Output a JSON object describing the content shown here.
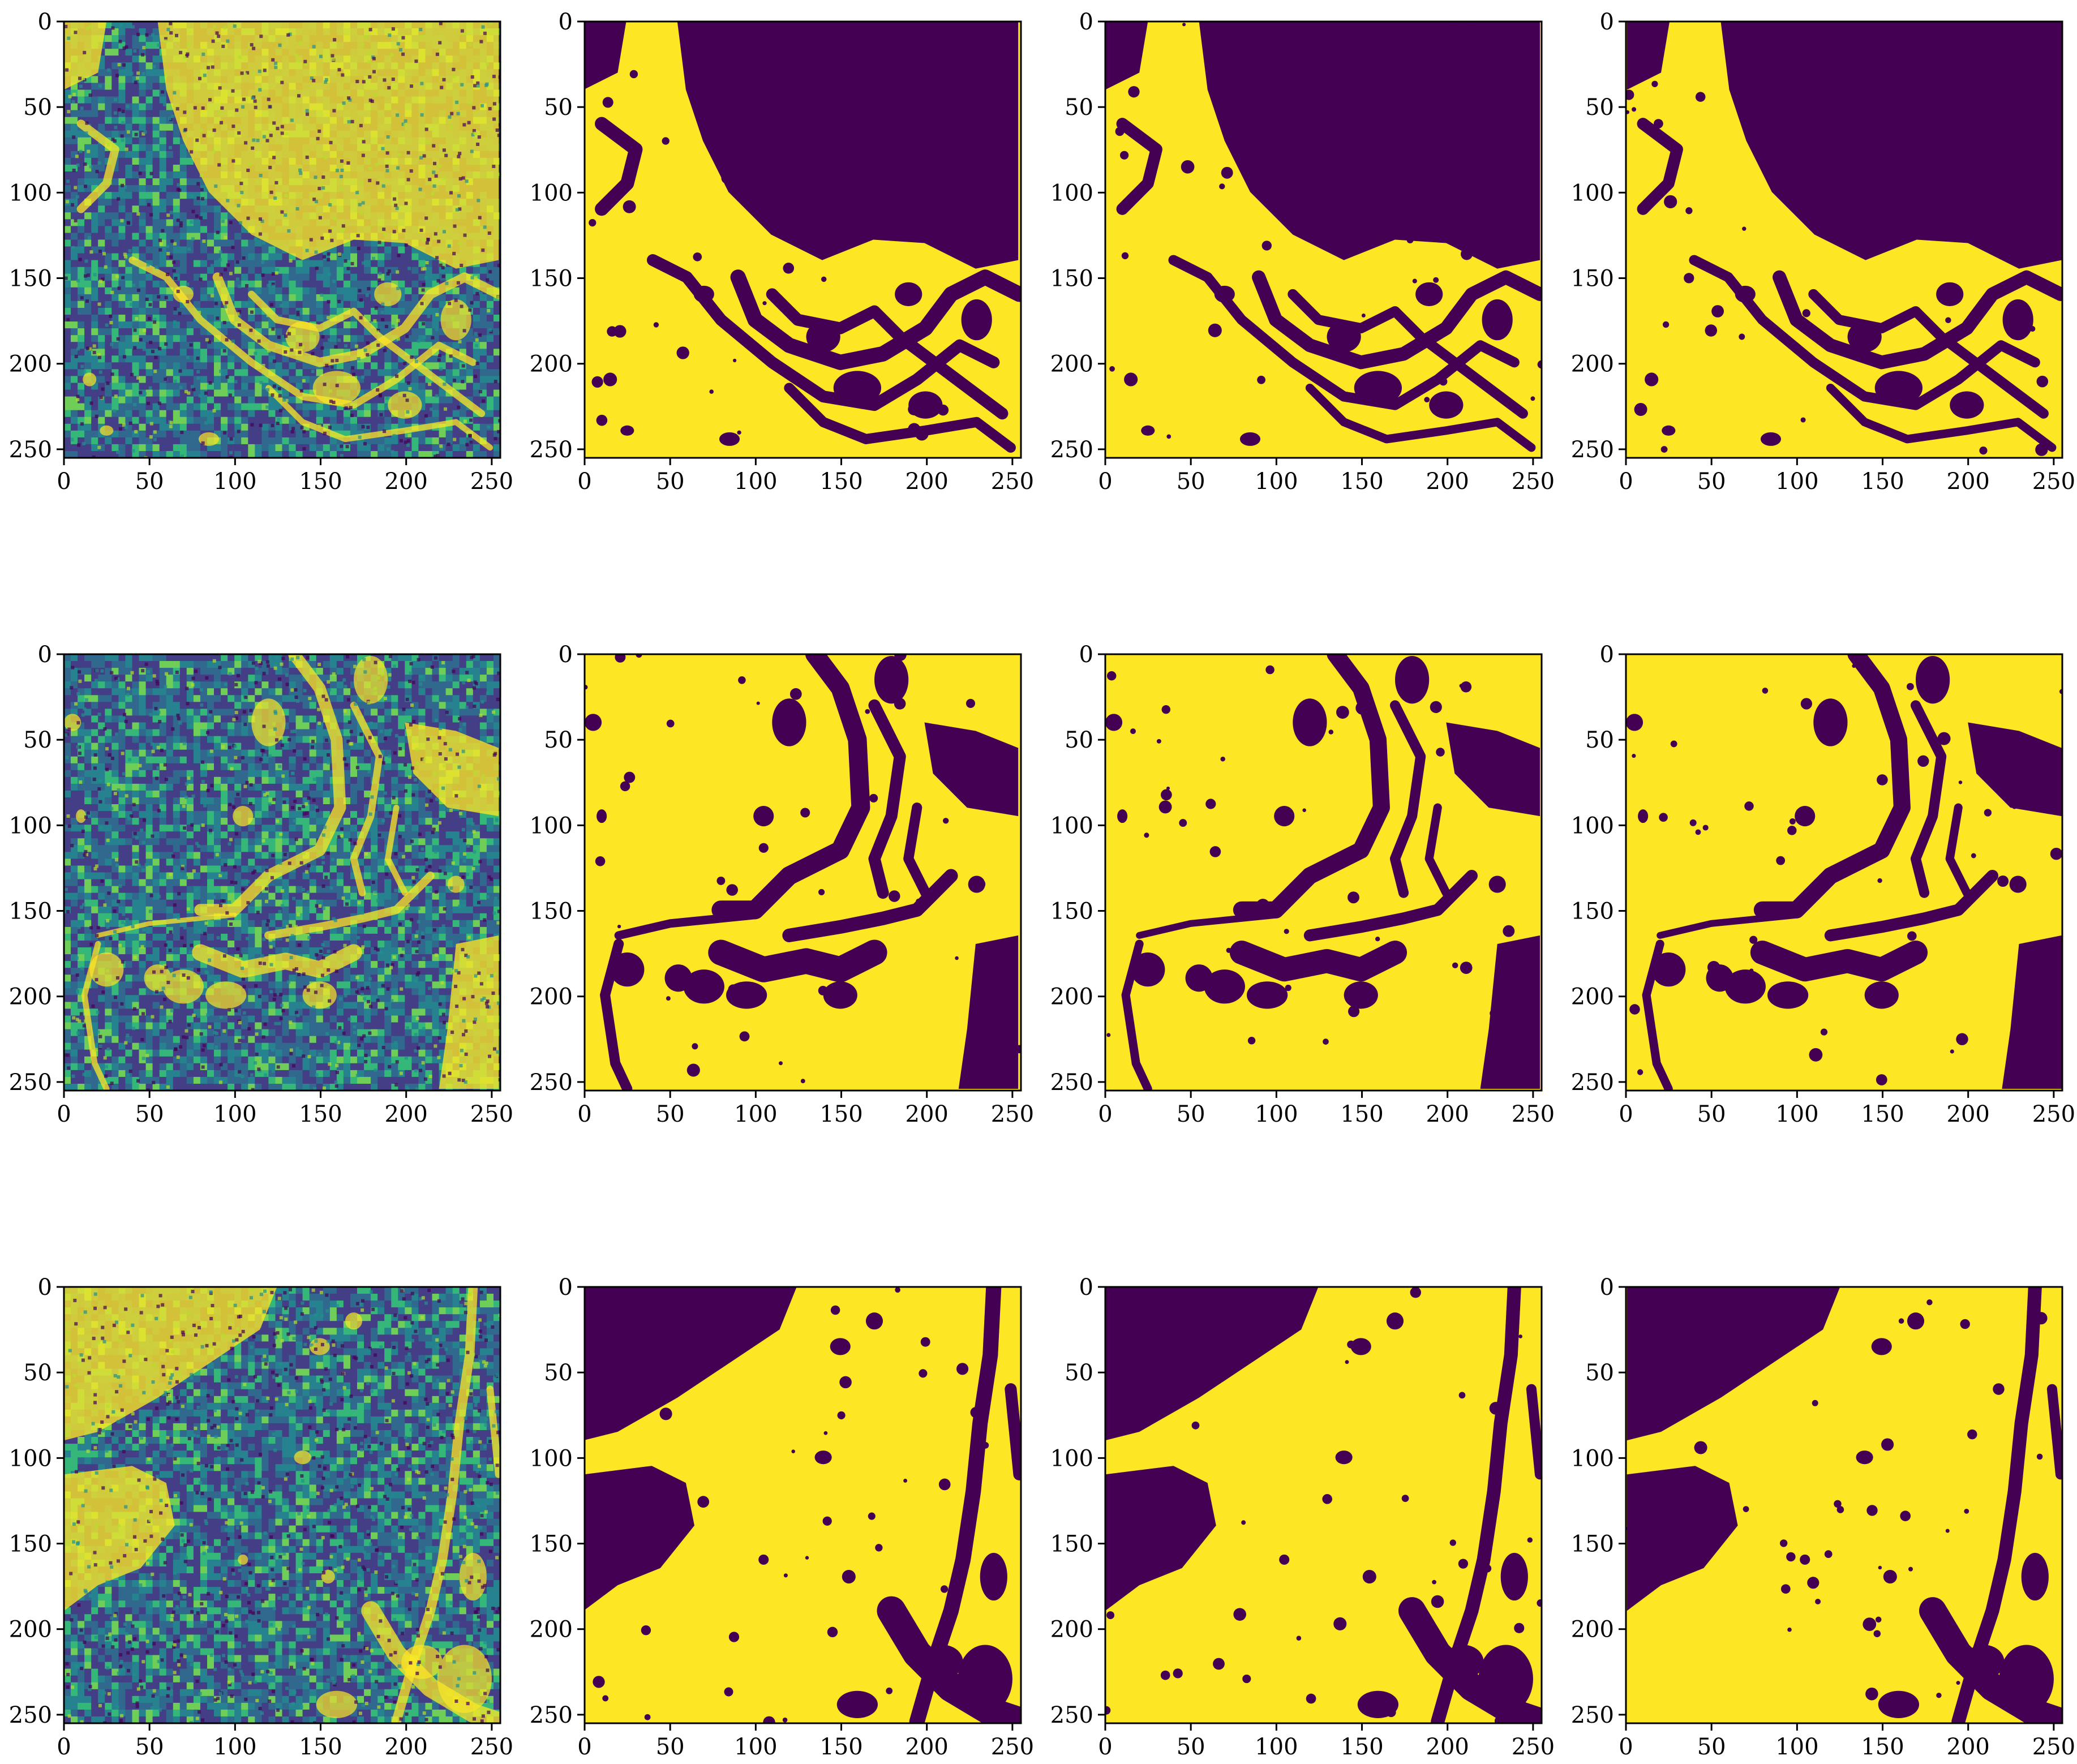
{
  "figure": {
    "rows": 3,
    "cols": 4,
    "colormap": "viridis",
    "colors": {
      "low": "#440154",
      "mid": "#21908d",
      "high": "#fde725",
      "axis": "#000000",
      "background": "#ffffff"
    }
  },
  "chart_data": [
    {
      "type": "heatmap",
      "row": 0,
      "col": 0,
      "kind": "sar-intensity",
      "title": "",
      "xlim": [
        0,
        255
      ],
      "ylim": [
        255,
        0
      ],
      "xticks": [
        0,
        50,
        100,
        150,
        200,
        250
      ],
      "yticks": [
        0,
        50,
        100,
        150,
        200,
        250
      ],
      "xtick_labels": [
        "0",
        "50",
        "100",
        "150",
        "200",
        "250"
      ],
      "ytick_labels": [
        "0",
        "50",
        "100",
        "150",
        "200",
        "250"
      ]
    },
    {
      "type": "heatmap",
      "row": 0,
      "col": 1,
      "kind": "binary-mask",
      "title": "",
      "xlim": [
        0,
        255
      ],
      "ylim": [
        255,
        0
      ],
      "xticks": [
        0,
        50,
        100,
        150,
        200,
        250
      ],
      "yticks": [
        0,
        50,
        100,
        150,
        200,
        250
      ],
      "xtick_labels": [
        "0",
        "50",
        "100",
        "150",
        "200",
        "250"
      ],
      "ytick_labels": [
        "0",
        "50",
        "100",
        "150",
        "200",
        "250"
      ]
    },
    {
      "type": "heatmap",
      "row": 0,
      "col": 2,
      "kind": "binary-mask",
      "title": "",
      "xlim": [
        0,
        255
      ],
      "ylim": [
        255,
        0
      ],
      "xticks": [
        0,
        50,
        100,
        150,
        200,
        250
      ],
      "yticks": [
        0,
        50,
        100,
        150,
        200,
        250
      ],
      "xtick_labels": [
        "0",
        "50",
        "100",
        "150",
        "200",
        "250"
      ],
      "ytick_labels": [
        "0",
        "50",
        "100",
        "150",
        "200",
        "250"
      ]
    },
    {
      "type": "heatmap",
      "row": 0,
      "col": 3,
      "kind": "binary-mask",
      "title": "",
      "xlim": [
        0,
        255
      ],
      "ylim": [
        255,
        0
      ],
      "xticks": [
        0,
        50,
        100,
        150,
        200,
        250
      ],
      "yticks": [
        0,
        50,
        100,
        150,
        200,
        250
      ],
      "xtick_labels": [
        "0",
        "50",
        "100",
        "150",
        "200",
        "250"
      ],
      "ytick_labels": [
        "0",
        "50",
        "100",
        "150",
        "200",
        "250"
      ]
    },
    {
      "type": "heatmap",
      "row": 1,
      "col": 0,
      "kind": "sar-intensity",
      "title": "",
      "xlim": [
        0,
        255
      ],
      "ylim": [
        255,
        0
      ],
      "xticks": [
        0,
        50,
        100,
        150,
        200,
        250
      ],
      "yticks": [
        0,
        50,
        100,
        150,
        200,
        250
      ],
      "xtick_labels": [
        "0",
        "50",
        "100",
        "150",
        "200",
        "250"
      ],
      "ytick_labels": [
        "0",
        "50",
        "100",
        "150",
        "200",
        "250"
      ]
    },
    {
      "type": "heatmap",
      "row": 1,
      "col": 1,
      "kind": "binary-mask",
      "title": "",
      "xlim": [
        0,
        255
      ],
      "ylim": [
        255,
        0
      ],
      "xticks": [
        0,
        50,
        100,
        150,
        200,
        250
      ],
      "yticks": [
        0,
        50,
        100,
        150,
        200,
        250
      ],
      "xtick_labels": [
        "0",
        "50",
        "100",
        "150",
        "200",
        "250"
      ],
      "ytick_labels": [
        "0",
        "50",
        "100",
        "150",
        "200",
        "250"
      ]
    },
    {
      "type": "heatmap",
      "row": 1,
      "col": 2,
      "kind": "binary-mask",
      "title": "",
      "xlim": [
        0,
        255
      ],
      "ylim": [
        255,
        0
      ],
      "xticks": [
        0,
        50,
        100,
        150,
        200,
        250
      ],
      "yticks": [
        0,
        50,
        100,
        150,
        200,
        250
      ],
      "xtick_labels": [
        "0",
        "50",
        "100",
        "150",
        "200",
        "250"
      ],
      "ytick_labels": [
        "0",
        "50",
        "100",
        "150",
        "200",
        "250"
      ]
    },
    {
      "type": "heatmap",
      "row": 1,
      "col": 3,
      "kind": "binary-mask",
      "title": "",
      "xlim": [
        0,
        255
      ],
      "ylim": [
        255,
        0
      ],
      "xticks": [
        0,
        50,
        100,
        150,
        200,
        250
      ],
      "yticks": [
        0,
        50,
        100,
        150,
        200,
        250
      ],
      "xtick_labels": [
        "0",
        "50",
        "100",
        "150",
        "200",
        "250"
      ],
      "ytick_labels": [
        "0",
        "50",
        "100",
        "150",
        "200",
        "250"
      ]
    },
    {
      "type": "heatmap",
      "row": 2,
      "col": 0,
      "kind": "sar-intensity",
      "title": "",
      "xlim": [
        0,
        255
      ],
      "ylim": [
        255,
        0
      ],
      "xticks": [
        0,
        50,
        100,
        150,
        200,
        250
      ],
      "yticks": [
        0,
        50,
        100,
        150,
        200,
        250
      ],
      "xtick_labels": [
        "0",
        "50",
        "100",
        "150",
        "200",
        "250"
      ],
      "ytick_labels": [
        "0",
        "50",
        "100",
        "150",
        "200",
        "250"
      ]
    },
    {
      "type": "heatmap",
      "row": 2,
      "col": 1,
      "kind": "binary-mask",
      "title": "",
      "xlim": [
        0,
        255
      ],
      "ylim": [
        255,
        0
      ],
      "xticks": [
        0,
        50,
        100,
        150,
        200,
        250
      ],
      "yticks": [
        0,
        50,
        100,
        150,
        200,
        250
      ],
      "xtick_labels": [
        "0",
        "50",
        "100",
        "150",
        "200",
        "250"
      ],
      "ytick_labels": [
        "0",
        "50",
        "100",
        "150",
        "200",
        "250"
      ]
    },
    {
      "type": "heatmap",
      "row": 2,
      "col": 2,
      "kind": "binary-mask",
      "title": "",
      "xlim": [
        0,
        255
      ],
      "ylim": [
        255,
        0
      ],
      "xticks": [
        0,
        50,
        100,
        150,
        200,
        250
      ],
      "yticks": [
        0,
        50,
        100,
        150,
        200,
        250
      ],
      "xtick_labels": [
        "0",
        "50",
        "100",
        "150",
        "200",
        "250"
      ],
      "ytick_labels": [
        "0",
        "50",
        "100",
        "150",
        "200",
        "250"
      ]
    },
    {
      "type": "heatmap",
      "row": 2,
      "col": 3,
      "kind": "binary-mask",
      "title": "",
      "xlim": [
        0,
        255
      ],
      "ylim": [
        255,
        0
      ],
      "xticks": [
        0,
        50,
        100,
        150,
        200,
        250
      ],
      "yticks": [
        0,
        50,
        100,
        150,
        200,
        250
      ],
      "xtick_labels": [
        "0",
        "50",
        "100",
        "150",
        "200",
        "250"
      ],
      "ytick_labels": [
        "0",
        "50",
        "100",
        "150",
        "200",
        "250"
      ]
    }
  ]
}
